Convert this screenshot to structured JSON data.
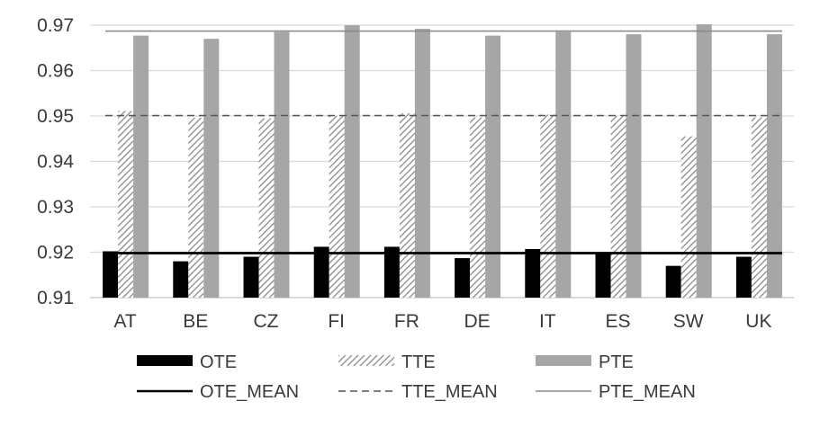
{
  "chart_data": {
    "type": "bar",
    "categories": [
      "AT",
      "BE",
      "CZ",
      "FI",
      "FR",
      "DE",
      "IT",
      "ES",
      "SW",
      "UK"
    ],
    "series": [
      {
        "name": "OTE",
        "values": [
          0.9202,
          0.918,
          0.919,
          0.9212,
          0.9212,
          0.9187,
          0.9207,
          0.9199,
          0.917,
          0.919
        ],
        "color": "#000000",
        "pattern": "solid"
      },
      {
        "name": "TTE",
        "values": [
          0.9511,
          0.9496,
          0.9495,
          0.95,
          0.9506,
          0.9497,
          0.9503,
          0.95,
          0.9455,
          0.9497
        ],
        "color": "#9a9a9a",
        "pattern": "hatch"
      },
      {
        "name": "PTE",
        "values": [
          0.9677,
          0.967,
          0.9685,
          0.97,
          0.9692,
          0.9677,
          0.9685,
          0.968,
          0.9702,
          0.968
        ],
        "color": "#a6a6a6",
        "pattern": "solid"
      }
    ],
    "reference_lines": [
      {
        "name": "OTE_MEAN",
        "value": 0.9198,
        "color": "#000000",
        "style": "solid"
      },
      {
        "name": "TTE_MEAN",
        "value": 0.9501,
        "color": "#555555",
        "style": "dashed"
      },
      {
        "name": "PTE_MEAN",
        "value": 0.9687,
        "color": "#8c8c8c",
        "style": "solid"
      }
    ],
    "yticks": [
      "0.91",
      "0.92",
      "0.93",
      "0.94",
      "0.95",
      "0.96",
      "0.97"
    ],
    "ylim": [
      0.91,
      0.97
    ],
    "grid": true,
    "legend_position": "bottom",
    "title": "",
    "xlabel": "",
    "ylabel": ""
  }
}
